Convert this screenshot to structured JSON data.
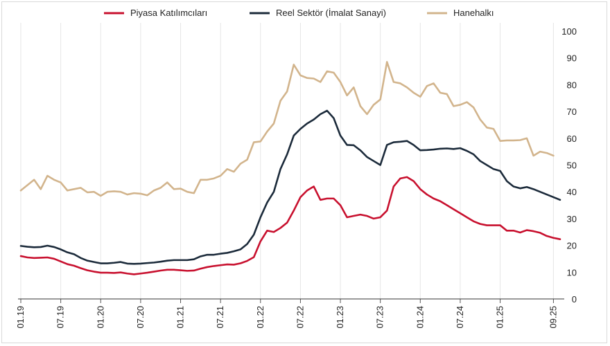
{
  "chart_data": {
    "type": "line",
    "title": "",
    "xlabel": "",
    "ylabel": "",
    "ylim": [
      0,
      100
    ],
    "y_ticks": [
      0,
      10,
      20,
      30,
      40,
      50,
      60,
      70,
      80,
      90,
      100
    ],
    "y_axis_side": "right",
    "grid": "vertical",
    "legend_position": "top",
    "x_tick_labels": [
      "01.19",
      "07.19",
      "01.20",
      "07.20",
      "01.21",
      "07.21",
      "01.22",
      "07.22",
      "01.23",
      "07.23",
      "01.24",
      "07.24",
      "01.25",
      "09.25"
    ],
    "x_tick_months": [
      0,
      6,
      12,
      18,
      24,
      30,
      36,
      42,
      48,
      54,
      60,
      66,
      72,
      80
    ],
    "series": [
      {
        "name": "Piyasa Katılımcıları",
        "color": "#c8102e",
        "values": [
          16.0,
          15.5,
          15.3,
          15.4,
          15.5,
          15.0,
          14.0,
          13.0,
          12.4,
          11.5,
          10.7,
          10.2,
          9.8,
          9.8,
          9.7,
          9.9,
          9.5,
          9.2,
          9.5,
          9.8,
          10.2,
          10.6,
          10.9,
          10.9,
          10.7,
          10.5,
          10.6,
          11.3,
          11.9,
          12.3,
          12.6,
          12.9,
          12.8,
          13.3,
          14.2,
          15.6,
          21.5,
          25.5,
          25.0,
          26.5,
          28.5,
          33.0,
          38.0,
          40.5,
          42.0,
          37.0,
          37.5,
          37.5,
          35.0,
          30.5,
          31.0,
          31.5,
          31.0,
          30.0,
          30.5,
          33.0,
          42.0,
          45.0,
          45.5,
          44.0,
          41.0,
          39.0,
          37.5,
          36.5,
          35.0,
          33.5,
          32.0,
          30.5,
          29.0,
          28.0,
          27.5,
          27.5,
          27.5,
          25.5,
          25.5,
          24.8,
          25.7,
          25.3,
          24.7,
          23.5,
          22.8,
          22.3
        ]
      },
      {
        "name": "Reel Sektör (İmalat Sanayi)",
        "color": "#1b2a3a",
        "values": [
          19.8,
          19.5,
          19.3,
          19.4,
          19.9,
          19.4,
          18.5,
          17.4,
          16.7,
          15.3,
          14.3,
          13.8,
          13.3,
          13.3,
          13.5,
          13.8,
          13.2,
          13.1,
          13.2,
          13.4,
          13.6,
          13.9,
          14.3,
          14.5,
          14.5,
          14.5,
          14.8,
          15.9,
          16.5,
          16.5,
          16.9,
          17.2,
          17.8,
          18.5,
          20.5,
          24.0,
          30.5,
          36.0,
          40.0,
          48.5,
          54.0,
          61.0,
          63.5,
          65.5,
          67.0,
          69.0,
          70.3,
          67.5,
          61.0,
          57.5,
          57.4,
          55.5,
          53.0,
          51.5,
          50.0,
          57.5,
          58.5,
          58.7,
          59.0,
          57.5,
          55.5,
          55.6,
          55.8,
          56.1,
          56.2,
          56.0,
          56.3,
          55.3,
          54.0,
          51.5,
          50.0,
          48.5,
          47.8,
          44.0,
          42.0,
          41.3,
          41.8,
          41.0,
          40.0,
          39.0,
          38.0,
          37.0
        ]
      },
      {
        "name": "Hanehalkı",
        "color": "#d2b48c",
        "values": [
          40.5,
          42.5,
          44.5,
          41.0,
          46.0,
          44.5,
          43.5,
          40.5,
          41.0,
          41.5,
          39.8,
          40.0,
          38.5,
          40.0,
          40.2,
          40.0,
          39.0,
          39.5,
          39.3,
          38.7,
          40.5,
          41.5,
          43.5,
          41.0,
          41.2,
          40.0,
          39.5,
          44.5,
          44.5,
          45.0,
          46.0,
          48.5,
          47.5,
          50.5,
          52.0,
          58.5,
          58.8,
          62.5,
          65.5,
          74.0,
          77.5,
          87.5,
          83.5,
          82.5,
          82.3,
          81.0,
          85.0,
          84.5,
          81.0,
          76.0,
          79.0,
          72.0,
          69.0,
          72.5,
          74.5,
          88.5,
          81.0,
          80.5,
          79.0,
          77.0,
          75.5,
          79.5,
          80.5,
          77.0,
          76.5,
          72.0,
          72.5,
          73.5,
          71.5,
          67.0,
          64.0,
          63.5,
          59.0,
          59.2,
          59.2,
          59.3,
          60.0,
          53.5,
          55.0,
          54.5,
          53.5
        ]
      }
    ]
  }
}
